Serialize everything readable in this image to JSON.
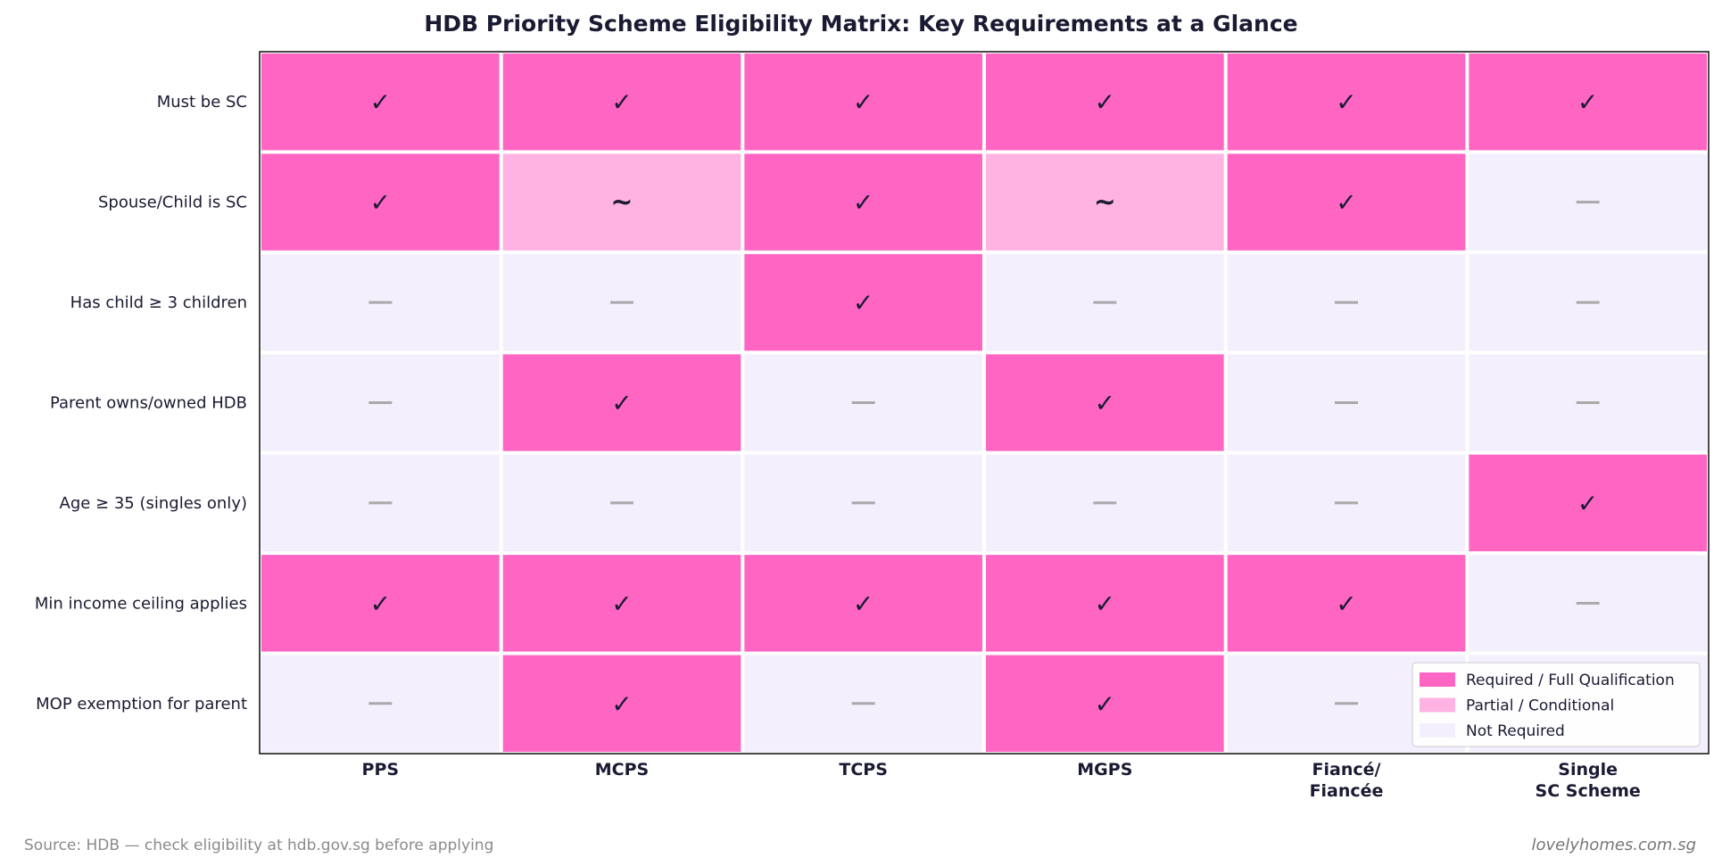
{
  "chart_data": {
    "type": "heatmap",
    "title": "HDB Priority Scheme Eligibility Matrix: Key Requirements at a Glance",
    "columns": [
      [
        "PPS"
      ],
      [
        "MCPS"
      ],
      [
        "TCPS"
      ],
      [
        "MGPS"
      ],
      [
        "Fiancé/",
        "Fiancée"
      ],
      [
        "Single",
        "SC Scheme"
      ]
    ],
    "rows": [
      "Must be SC",
      "Spouse/Child is SC",
      "Has child ≥ 3 children",
      "Parent owns/owned HDB",
      "Age ≥ 35 (singles only)",
      "Min income ceiling applies",
      "MOP exemption for parent"
    ],
    "values": [
      [
        2,
        2,
        2,
        2,
        2,
        2
      ],
      [
        2,
        1,
        2,
        1,
        2,
        0
      ],
      [
        0,
        0,
        2,
        0,
        0,
        0
      ],
      [
        0,
        2,
        0,
        2,
        0,
        0
      ],
      [
        0,
        0,
        0,
        0,
        0,
        2
      ],
      [
        2,
        2,
        2,
        2,
        2,
        0
      ],
      [
        0,
        2,
        0,
        2,
        0,
        0
      ]
    ],
    "symbols": {
      "2": "✓",
      "1": "~",
      "0": "—"
    },
    "colors": {
      "2": "#ff66c4",
      "1": "#ffb3e3",
      "0": "#f3effd"
    },
    "symbol_colors": {
      "2": "#1a1a33",
      "1": "#1a1a33",
      "0": "#a9a9a9"
    },
    "legend": {
      "placement": "bottom-right",
      "entries": [
        {
          "label": "Required / Full Qualification",
          "level": 2
        },
        {
          "label": "Partial / Conditional",
          "level": 1
        },
        {
          "label": "Not Required",
          "level": 0
        }
      ]
    }
  },
  "footer": {
    "source": "Source: HDB — check eligibility at hdb.gov.sg before applying",
    "brand": "lovelyhomes.com.sg"
  }
}
